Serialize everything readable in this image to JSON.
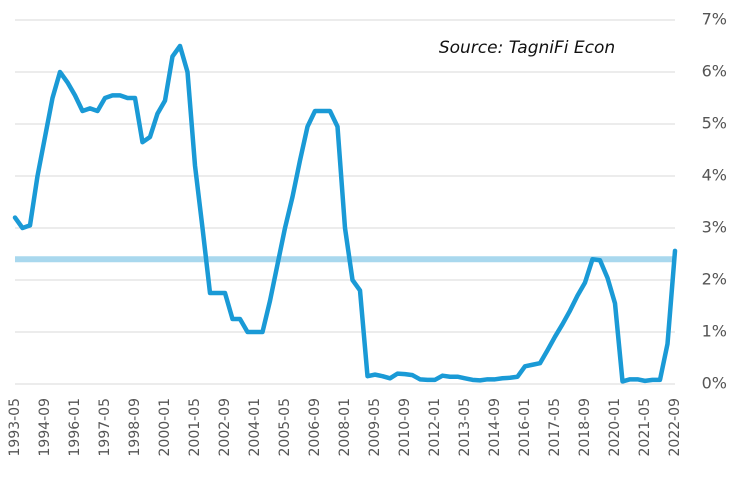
{
  "chart_data": {
    "type": "line",
    "annotation": "Source: TagniFi Econ",
    "categories": [
      "1993-05",
      null,
      null,
      null,
      "1994-09",
      null,
      null,
      null,
      "1996-01",
      null,
      null,
      null,
      "1997-05",
      null,
      null,
      null,
      "1998-09",
      null,
      null,
      null,
      "2000-01",
      null,
      null,
      null,
      "2001-05",
      null,
      null,
      null,
      "2002-09",
      null,
      null,
      null,
      "2004-01",
      null,
      null,
      null,
      "2005-05",
      null,
      null,
      null,
      "2006-09",
      null,
      null,
      null,
      "2008-01",
      null,
      null,
      null,
      "2009-05",
      null,
      null,
      null,
      "2010-09",
      null,
      null,
      null,
      "2012-01",
      null,
      null,
      null,
      "2013-05",
      null,
      null,
      null,
      "2014-09",
      null,
      null,
      null,
      "2016-01",
      null,
      null,
      null,
      "2017-05",
      null,
      null,
      null,
      "2018-09",
      null,
      null,
      null,
      "2020-01",
      null,
      null,
      null,
      "2021-05",
      null,
      null,
      null,
      "2022-09"
    ],
    "values": [
      3.2,
      3.0,
      3.05,
      4.0,
      4.75,
      5.5,
      6.0,
      5.8,
      5.55,
      5.25,
      5.3,
      5.25,
      5.5,
      5.55,
      5.55,
      5.5,
      5.5,
      4.65,
      4.75,
      5.2,
      5.45,
      6.3,
      6.5,
      6.0,
      4.2,
      3.0,
      1.75,
      1.75,
      1.75,
      1.25,
      1.25,
      1.0,
      1.0,
      1.0,
      1.6,
      2.3,
      3.0,
      3.6,
      4.3,
      4.95,
      5.25,
      5.25,
      5.25,
      4.95,
      3.0,
      2.0,
      1.8,
      0.15,
      0.18,
      0.15,
      0.11,
      0.2,
      0.19,
      0.17,
      0.09,
      0.08,
      0.08,
      0.16,
      0.14,
      0.14,
      0.11,
      0.08,
      0.07,
      0.09,
      0.09,
      0.11,
      0.12,
      0.14,
      0.34,
      0.37,
      0.4,
      0.65,
      0.91,
      1.15,
      1.41,
      1.7,
      1.95,
      2.4,
      2.38,
      2.04,
      1.55,
      0.05,
      0.09,
      0.09,
      0.06,
      0.08,
      0.08,
      0.77,
      2.56
    ],
    "color": "#1a9ad6",
    "reference_line": {
      "value": 2.4,
      "color": "#a9d8ee"
    },
    "ylim": [
      0,
      7
    ],
    "yticks": [
      {
        "value": 0,
        "label": "0%"
      },
      {
        "value": 1,
        "label": "1%"
      },
      {
        "value": 2,
        "label": "2%"
      },
      {
        "value": 3,
        "label": "3%"
      },
      {
        "value": 4,
        "label": "4%"
      },
      {
        "value": 5,
        "label": "5%"
      },
      {
        "value": 6,
        "label": "6%"
      },
      {
        "value": 7,
        "label": "7%"
      }
    ],
    "grid": true
  }
}
